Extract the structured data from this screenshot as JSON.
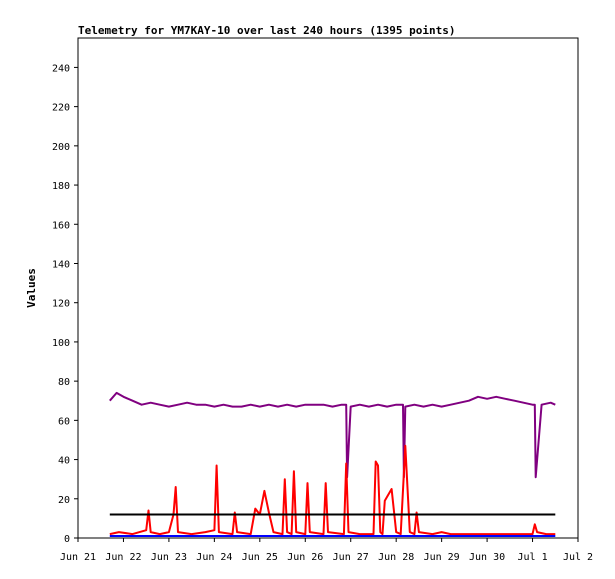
{
  "chart_data": {
    "type": "line",
    "title": "Telemetry for YM7KAY-10 over last 240 hours (1395 points)",
    "xlabel": "",
    "ylabel": "Values",
    "ylim": [
      0,
      255
    ],
    "xlim_days": [
      0,
      11
    ],
    "x_tick_labels": [
      "Jun 21",
      "Jun 22",
      "Jun 23",
      "Jun 24",
      "Jun 25",
      "Jun 26",
      "Jun 27",
      "Jun 28",
      "Jun 29",
      "Jun 30",
      "Jul 1",
      "Jul 2"
    ],
    "y_ticks": [
      0,
      20,
      40,
      60,
      80,
      100,
      120,
      140,
      160,
      180,
      200,
      220,
      240
    ],
    "grid": false,
    "legend": "none",
    "colors": {
      "purple": "#800080",
      "red": "#ff0000",
      "black": "#000000",
      "blue": "#0000ff"
    },
    "series": [
      {
        "color": "purple",
        "x": [
          0.7,
          0.85,
          1.0,
          1.2,
          1.4,
          1.6,
          1.8,
          2.0,
          2.2,
          2.4,
          2.6,
          2.8,
          3.0,
          3.2,
          3.4,
          3.6,
          3.8,
          4.0,
          4.2,
          4.4,
          4.6,
          4.8,
          5.0,
          5.2,
          5.4,
          5.6,
          5.8,
          5.9,
          5.92,
          6.0,
          6.2,
          6.4,
          6.6,
          6.8,
          7.0,
          7.15,
          7.17,
          7.2,
          7.4,
          7.6,
          7.8,
          8.0,
          8.2,
          8.4,
          8.6,
          8.8,
          9.0,
          9.2,
          9.4,
          9.6,
          9.8,
          10.0,
          10.05,
          10.07,
          10.2,
          10.4,
          10.5
        ],
        "y": [
          70,
          74,
          72,
          70,
          68,
          69,
          68,
          67,
          68,
          69,
          68,
          68,
          67,
          68,
          67,
          67,
          68,
          67,
          68,
          67,
          68,
          67,
          68,
          68,
          68,
          67,
          68,
          68,
          31,
          67,
          68,
          67,
          68,
          67,
          68,
          68,
          31,
          67,
          68,
          67,
          68,
          67,
          68,
          69,
          70,
          72,
          71,
          72,
          71,
          70,
          69,
          68,
          68,
          31,
          68,
          69,
          68
        ]
      },
      {
        "color": "red",
        "x": [
          0.7,
          0.9,
          1.2,
          1.5,
          1.55,
          1.6,
          1.8,
          2.0,
          2.1,
          2.15,
          2.2,
          2.5,
          2.8,
          3.0,
          3.05,
          3.1,
          3.4,
          3.45,
          3.5,
          3.8,
          3.9,
          4.0,
          4.1,
          4.2,
          4.3,
          4.5,
          4.55,
          4.6,
          4.7,
          4.75,
          4.8,
          5.0,
          5.05,
          5.1,
          5.4,
          5.45,
          5.5,
          5.85,
          5.9,
          5.95,
          6.2,
          6.5,
          6.55,
          6.6,
          6.65,
          6.7,
          6.75,
          6.8,
          6.9,
          7.0,
          7.1,
          7.2,
          7.3,
          7.4,
          7.45,
          7.5,
          7.8,
          8.0,
          8.2,
          8.5,
          9.0,
          9.5,
          10.0,
          10.05,
          10.1,
          10.3,
          10.5
        ],
        "y": [
          2,
          3,
          2,
          4,
          14,
          3,
          2,
          3,
          12,
          26,
          3,
          2,
          3,
          4,
          37,
          3,
          2,
          13,
          3,
          2,
          15,
          12,
          24,
          13,
          3,
          2,
          30,
          3,
          2,
          34,
          3,
          2,
          28,
          3,
          2,
          28,
          3,
          2,
          38,
          3,
          2,
          2,
          39,
          37,
          3,
          2,
          19,
          21,
          25,
          3,
          2,
          47,
          3,
          2,
          13,
          3,
          2,
          3,
          2,
          2,
          2,
          2,
          2,
          7,
          3,
          2,
          2
        ]
      },
      {
        "color": "black",
        "x": [
          0.7,
          10.5
        ],
        "y": [
          12,
          12
        ]
      },
      {
        "color": "blue",
        "x": [
          0.7,
          10.5
        ],
        "y": [
          1,
          1
        ]
      }
    ]
  }
}
